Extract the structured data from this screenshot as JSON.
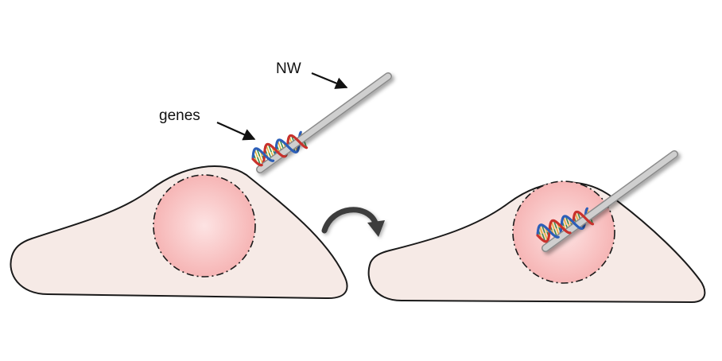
{
  "labels": {
    "nanowire": "NW",
    "genes": "genes"
  },
  "colors": {
    "cell_fill": "#f6eae6",
    "cell_stroke": "#1a1a1a",
    "nucleus_center": "#fde3e3",
    "nucleus_edge": "#f6b5b5",
    "nanowire": "#c6c6c6",
    "nanowire_edge": "#8a8a8a",
    "dna_strand_a": "#c8322d",
    "dna_strand_b": "#2d5fb8",
    "dna_rung_a": "#e7b23a",
    "dna_rung_b": "#3f8f4a",
    "arrow": "#111111",
    "curved_arrow": "#3c3c3c"
  },
  "panels": [
    {
      "name": "before-insertion",
      "nanowire_location": "outside-cell"
    },
    {
      "name": "after-insertion",
      "nanowire_location": "inside-nucleus"
    }
  ]
}
